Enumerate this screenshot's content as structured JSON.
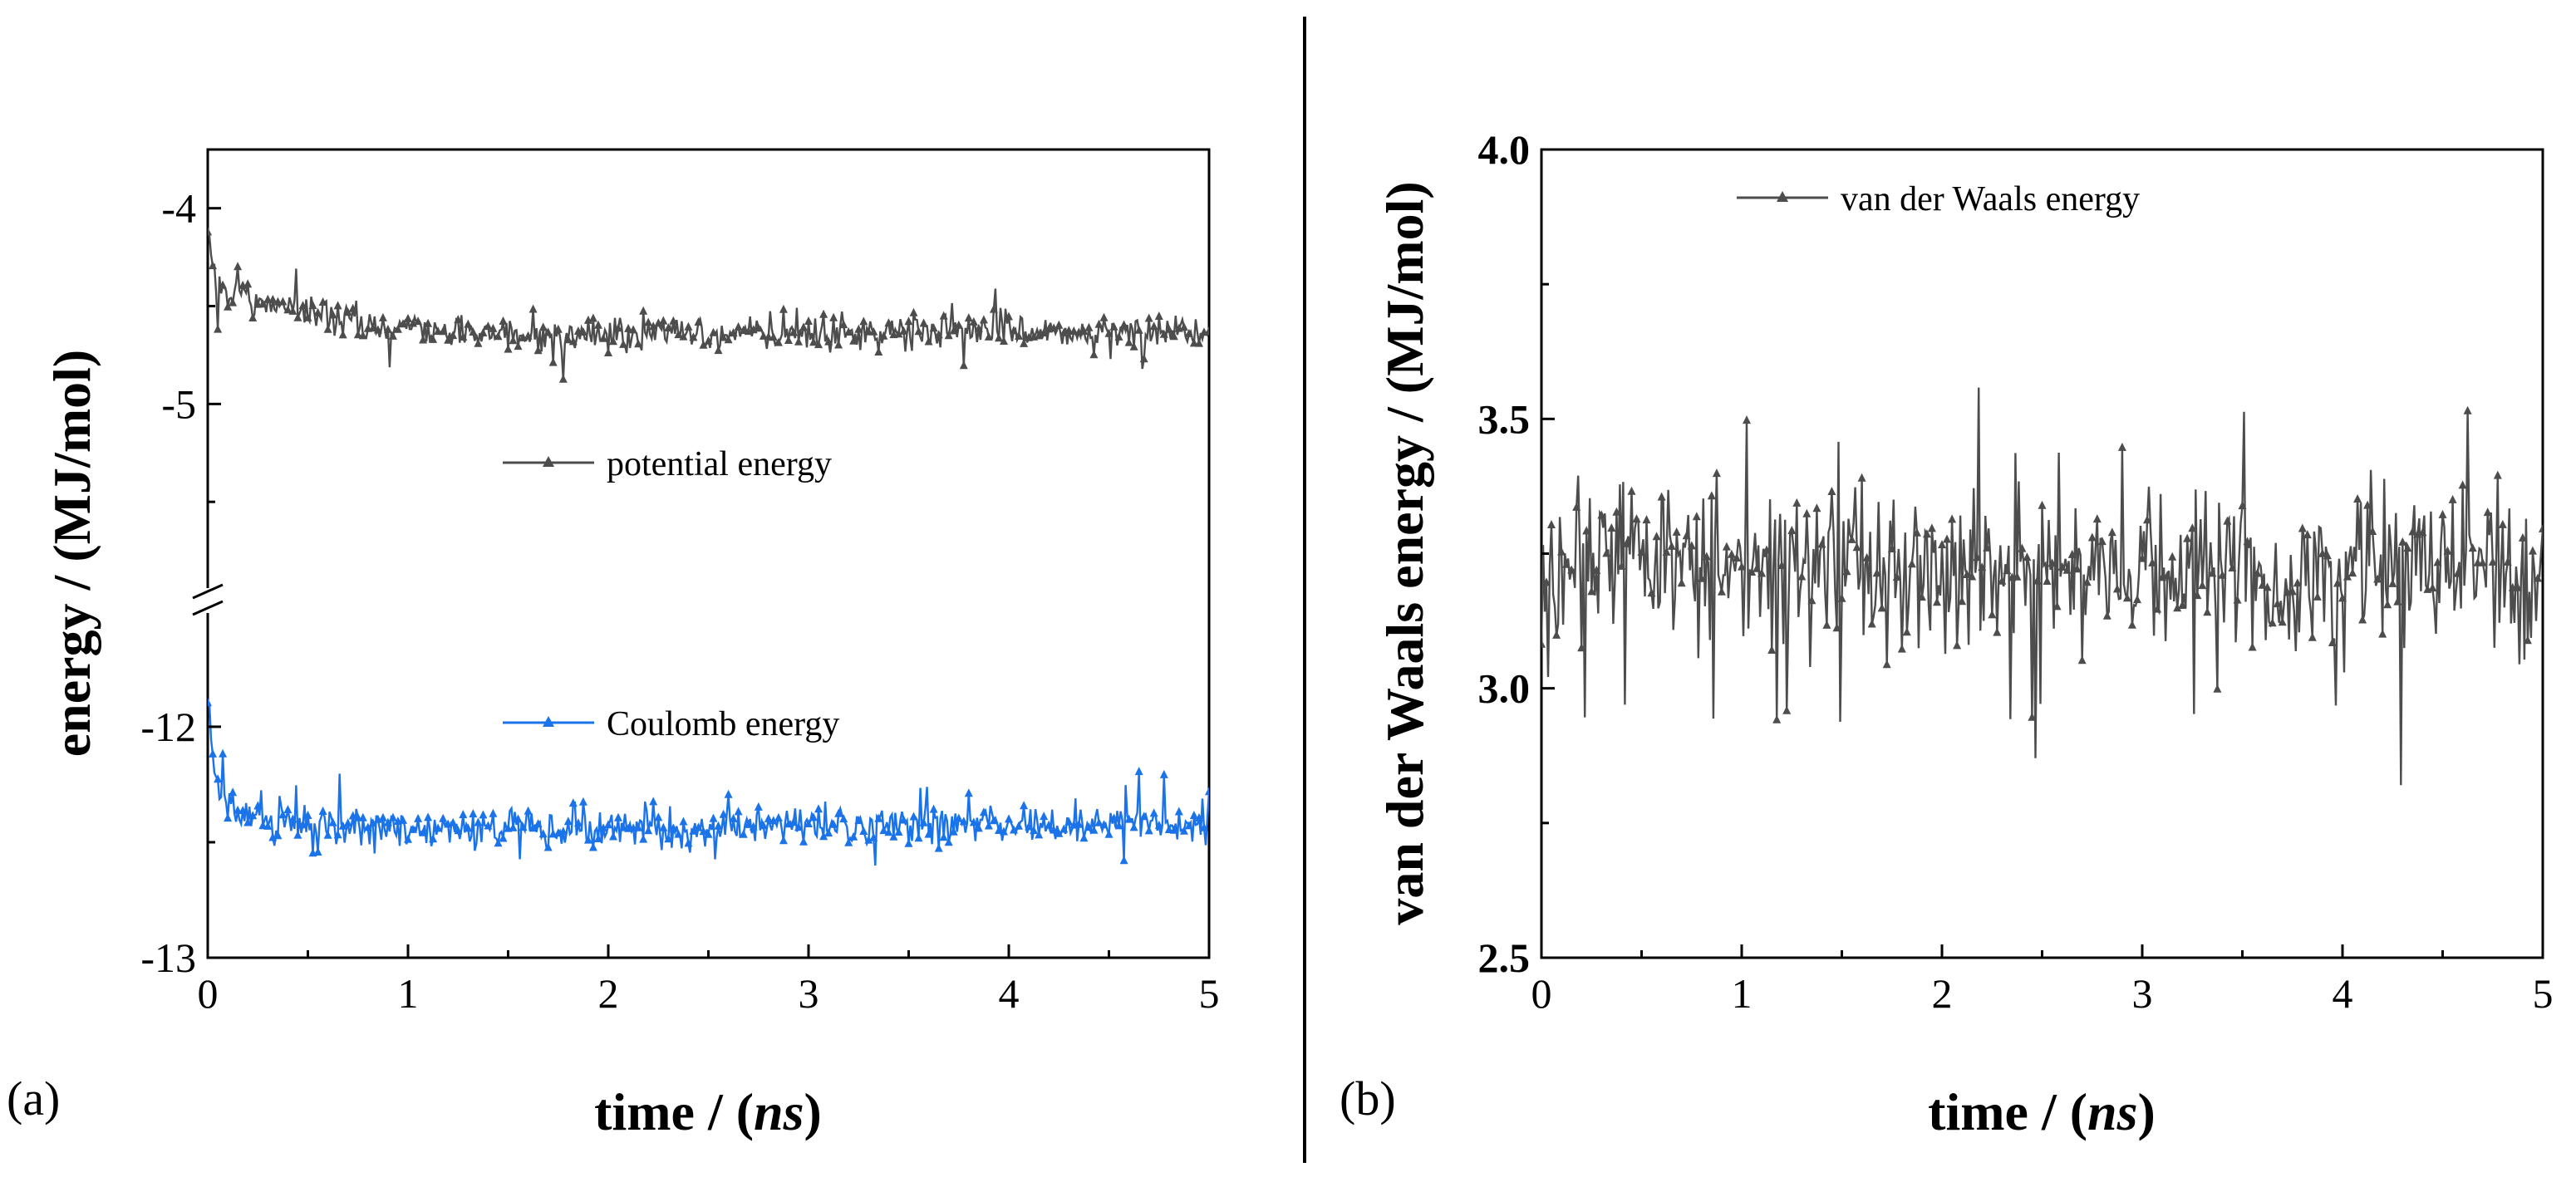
{
  "chart_data": [
    {
      "type": "line",
      "panel_label": "(a)",
      "xlabel_prefix": "time / (",
      "xlabel_italic": "ns",
      "xlabel_suffix": ")",
      "ylabel": "energy / (MJ/mol)",
      "xlim": [
        0,
        5
      ],
      "xticks": [
        "0",
        "1",
        "2",
        "3",
        "4",
        "5"
      ],
      "broken_axis": true,
      "upper_segment": {
        "ylim": [
          -6,
          -3.7
        ],
        "yticks": [
          -4,
          -5
        ],
        "ytick_labels": [
          "-4",
          "-5"
        ]
      },
      "lower_segment": {
        "ylim": [
          -13,
          -11.45
        ],
        "yticks": [
          -12,
          -13
        ],
        "ytick_labels": [
          "-12",
          "-13"
        ]
      },
      "series": [
        {
          "name": "potential energy",
          "segment": "upper",
          "color": "#4d4d4d",
          "x": [
            0,
            0.02,
            0.05,
            0.1,
            0.2,
            0.3,
            0.5,
            0.7,
            0.9,
            1.2,
            1.5,
            2.0,
            2.5,
            3.0,
            3.5,
            4.0,
            4.5,
            5.0
          ],
          "values": [
            -4.05,
            -4.3,
            -4.42,
            -4.44,
            -4.46,
            -4.48,
            -4.52,
            -4.57,
            -4.61,
            -4.63,
            -4.64,
            -4.64,
            -4.64,
            -4.64,
            -4.63,
            -4.63,
            -4.63,
            -4.64
          ],
          "noise": 0.05
        },
        {
          "name": "Coulomb energy",
          "segment": "lower",
          "color": "#1a73e8",
          "x": [
            0,
            0.02,
            0.05,
            0.1,
            0.2,
            0.3,
            0.5,
            0.7,
            1.0,
            1.5,
            2.0,
            2.5,
            3.0,
            3.5,
            4.0,
            4.5,
            5.0
          ],
          "values": [
            -11.85,
            -12.1,
            -12.25,
            -12.34,
            -12.38,
            -12.4,
            -12.42,
            -12.43,
            -12.44,
            -12.44,
            -12.44,
            -12.44,
            -12.43,
            -12.43,
            -12.42,
            -12.42,
            -12.43
          ],
          "noise": 0.05
        }
      ],
      "legend": [
        "potential energy",
        "Coulomb energy"
      ]
    },
    {
      "type": "line",
      "panel_label": "(b)",
      "xlabel_prefix": "time / (",
      "xlabel_italic": "ns",
      "xlabel_suffix": ")",
      "ylabel": "van der Waals energy / (MJ/mol)",
      "xlim": [
        0,
        5
      ],
      "ylim": [
        2.5,
        4.0
      ],
      "xticks": [
        "0",
        "1",
        "2",
        "3",
        "4",
        "5"
      ],
      "yticks": [
        "2.5",
        "3.0",
        "3.5",
        "4.0"
      ],
      "series": [
        {
          "name": "van der Waals energy",
          "color": "#4d4d4d",
          "x": [
            0,
            0.05,
            0.1,
            0.3,
            0.5,
            0.7,
            1.0,
            1.5,
            2.0,
            2.5,
            3.0,
            3.5,
            4.0,
            4.5,
            5.0
          ],
          "values": [
            3.2,
            3.15,
            3.2,
            3.24,
            3.26,
            3.25,
            3.22,
            3.22,
            3.22,
            3.22,
            3.21,
            3.22,
            3.21,
            3.21,
            3.22
          ],
          "noise": 0.09
        }
      ],
      "legend": [
        "van der Waals energy"
      ]
    }
  ]
}
